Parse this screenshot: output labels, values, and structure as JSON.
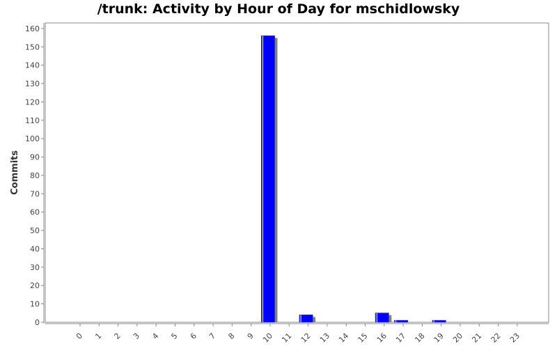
{
  "chart_data": {
    "type": "bar",
    "title": "/trunk: Activity by Hour of Day for mschidlowsky",
    "xlabel": "",
    "ylabel": "Commits",
    "categories": [
      "0",
      "1",
      "2",
      "3",
      "4",
      "5",
      "6",
      "7",
      "8",
      "9",
      "10",
      "11",
      "12",
      "13",
      "14",
      "15",
      "16",
      "17",
      "18",
      "19",
      "20",
      "21",
      "22",
      "23"
    ],
    "values": [
      0,
      0,
      0,
      0,
      0,
      0,
      0,
      0,
      0,
      0,
      156,
      0,
      4,
      0,
      0,
      0,
      5,
      1,
      0,
      1,
      0,
      0,
      0,
      0
    ],
    "ylim": [
      0,
      163
    ],
    "yticks": [
      0,
      10,
      20,
      30,
      40,
      50,
      60,
      70,
      80,
      90,
      100,
      110,
      120,
      130,
      140,
      150,
      160
    ],
    "grid": false,
    "legend": "none",
    "colors": {
      "bar": "#0000ff",
      "bar_edge": "#3333bb",
      "shadow": "#808080",
      "axis": "#888888"
    }
  }
}
